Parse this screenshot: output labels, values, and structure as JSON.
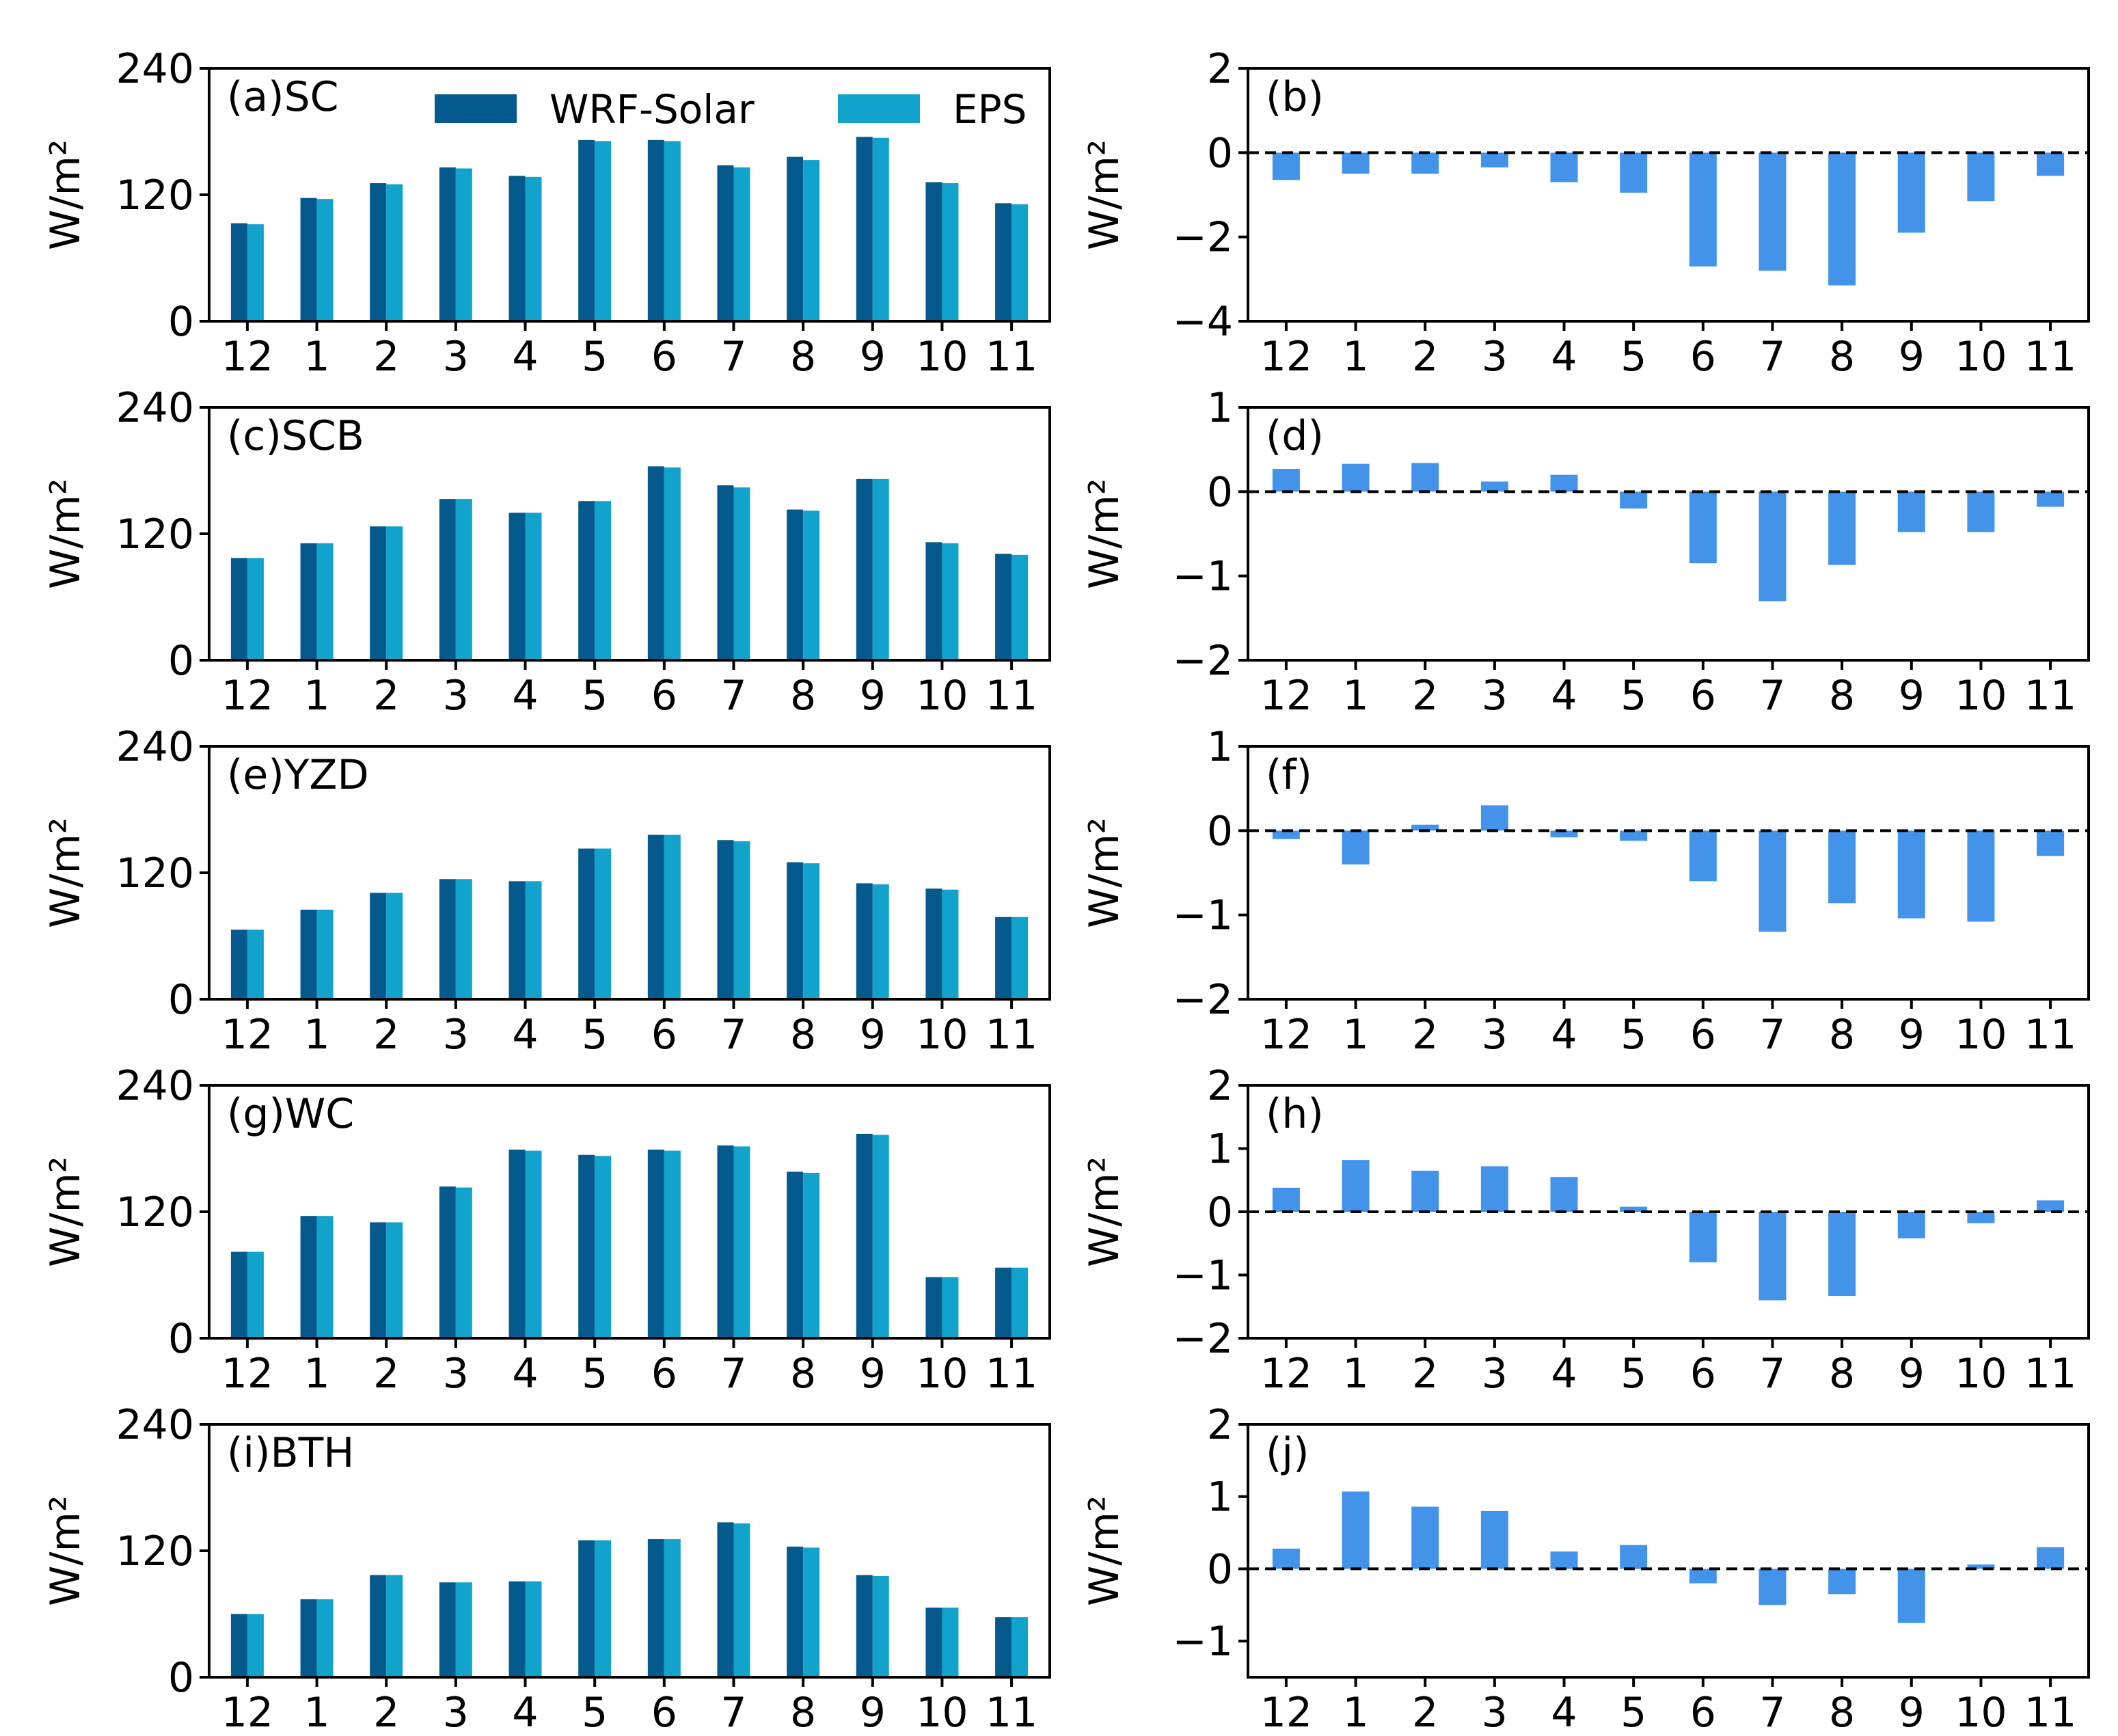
{
  "figure": {
    "colors": {
      "wrf": "#045a8d",
      "eps": "#11a3cc",
      "diff": "#4393ea",
      "zero_line": "#000000"
    },
    "legend": {
      "items": [
        "WRF-Solar",
        "EPS"
      ],
      "placement": "top-center of panel (a)"
    }
  },
  "chart_data": [
    {
      "type": "bar",
      "panel": "(a)SC",
      "categories": [
        "12",
        "1",
        "2",
        "3",
        "4",
        "5",
        "6",
        "7",
        "8",
        "9",
        "10",
        "11"
      ],
      "ylabel": "W/m²",
      "ylim": [
        0,
        240
      ],
      "yticks": [
        "0",
        "120",
        "240"
      ],
      "series": [
        {
          "name": "WRF-Solar",
          "values": [
            93,
            117,
            131,
            146,
            138,
            172,
            172,
            148,
            156,
            175,
            132,
            112
          ]
        },
        {
          "name": "EPS",
          "values": [
            92,
            116,
            130,
            145,
            137,
            171,
            171,
            146,
            153,
            174,
            131,
            111
          ]
        }
      ]
    },
    {
      "type": "bar",
      "panel": "(b)",
      "categories": [
        "12",
        "1",
        "2",
        "3",
        "4",
        "5",
        "6",
        "7",
        "8",
        "9",
        "10",
        "11"
      ],
      "ylabel": "W/m²",
      "ylim": [
        -4,
        2
      ],
      "yticks": [
        "−4",
        "−2",
        "0",
        "2"
      ],
      "series": [
        {
          "name": "",
          "values": [
            -0.65,
            -0.5,
            -0.5,
            -0.35,
            -0.7,
            -0.95,
            -2.7,
            -2.8,
            -3.15,
            -1.9,
            -1.15,
            -0.55
          ]
        }
      ]
    },
    {
      "type": "bar",
      "panel": "(c)SCB",
      "categories": [
        "12",
        "1",
        "2",
        "3",
        "4",
        "5",
        "6",
        "7",
        "8",
        "9",
        "10",
        "11"
      ],
      "ylabel": "W/m²",
      "ylim": [
        0,
        240
      ],
      "yticks": [
        "0",
        "120",
        "240"
      ],
      "series": [
        {
          "name": "WRF-Solar",
          "values": [
            97,
            111,
            127,
            153,
            140,
            151,
            184,
            166,
            143,
            172,
            112,
            101
          ]
        },
        {
          "name": "EPS",
          "values": [
            97,
            111,
            127,
            153,
            140,
            151,
            183,
            164,
            142,
            172,
            111,
            100
          ]
        }
      ]
    },
    {
      "type": "bar",
      "panel": "(d)",
      "categories": [
        "12",
        "1",
        "2",
        "3",
        "4",
        "5",
        "6",
        "7",
        "8",
        "9",
        "10",
        "11"
      ],
      "ylabel": "W/m²",
      "ylim": [
        -2,
        1
      ],
      "yticks": [
        "−2",
        "−1",
        "0",
        "1"
      ],
      "series": [
        {
          "name": "",
          "values": [
            0.27,
            0.33,
            0.34,
            0.12,
            0.2,
            -0.2,
            -0.85,
            -1.3,
            -0.87,
            -0.48,
            -0.48,
            -0.18
          ]
        }
      ]
    },
    {
      "type": "bar",
      "panel": "(e)YZD",
      "categories": [
        "12",
        "1",
        "2",
        "3",
        "4",
        "5",
        "6",
        "7",
        "8",
        "9",
        "10",
        "11"
      ],
      "ylabel": "W/m²",
      "ylim": [
        0,
        240
      ],
      "yticks": [
        "0",
        "120",
        "240"
      ],
      "series": [
        {
          "name": "WRF-Solar",
          "values": [
            66,
            85,
            101,
            114,
            112,
            143,
            156,
            151,
            130,
            110,
            105,
            78
          ]
        },
        {
          "name": "EPS",
          "values": [
            66,
            85,
            101,
            114,
            112,
            143,
            156,
            150,
            129,
            109,
            104,
            78
          ]
        }
      ]
    },
    {
      "type": "bar",
      "panel": "(f)",
      "categories": [
        "12",
        "1",
        "2",
        "3",
        "4",
        "5",
        "6",
        "7",
        "8",
        "9",
        "10",
        "11"
      ],
      "ylabel": "W/m²",
      "ylim": [
        -2,
        1
      ],
      "yticks": [
        "−2",
        "−1",
        "0",
        "1"
      ],
      "series": [
        {
          "name": "",
          "values": [
            -0.1,
            -0.4,
            0.07,
            0.3,
            -0.08,
            -0.12,
            -0.6,
            -1.2,
            -0.86,
            -1.04,
            -1.08,
            -0.3
          ]
        }
      ]
    },
    {
      "type": "bar",
      "panel": "(g)WC",
      "categories": [
        "12",
        "1",
        "2",
        "3",
        "4",
        "5",
        "6",
        "7",
        "8",
        "9",
        "10",
        "11"
      ],
      "ylabel": "W/m²",
      "ylim": [
        0,
        240
      ],
      "yticks": [
        "0",
        "120",
        "240"
      ],
      "series": [
        {
          "name": "WRF-Solar",
          "values": [
            82,
            116,
            110,
            144,
            179,
            174,
            179,
            183,
            158,
            194,
            58,
            67
          ]
        },
        {
          "name": "EPS",
          "values": [
            82,
            116,
            110,
            143,
            178,
            173,
            178,
            182,
            157,
            193,
            58,
            67
          ]
        }
      ]
    },
    {
      "type": "bar",
      "panel": "(h)",
      "categories": [
        "12",
        "1",
        "2",
        "3",
        "4",
        "5",
        "6",
        "7",
        "8",
        "9",
        "10",
        "11"
      ],
      "ylabel": "W/m²",
      "ylim": [
        -2,
        2
      ],
      "yticks": [
        "−2",
        "−1",
        "0",
        "1",
        "2"
      ],
      "series": [
        {
          "name": "",
          "values": [
            0.38,
            0.82,
            0.65,
            0.72,
            0.55,
            0.08,
            -0.8,
            -1.4,
            -1.33,
            -0.42,
            -0.18,
            0.18
          ]
        }
      ]
    },
    {
      "type": "bar",
      "panel": "(i)BTH",
      "categories": [
        "12",
        "1",
        "2",
        "3",
        "4",
        "5",
        "6",
        "7",
        "8",
        "9",
        "10",
        "11"
      ],
      "ylabel": "W/m²",
      "ylim": [
        0,
        240
      ],
      "yticks": [
        "0",
        "120",
        "240"
      ],
      "series": [
        {
          "name": "WRF-Solar",
          "values": [
            60,
            74,
            97,
            90,
            91,
            130,
            131,
            147,
            124,
            97,
            66,
            57
          ]
        },
        {
          "name": "EPS",
          "values": [
            60,
            74,
            97,
            90,
            91,
            130,
            131,
            146,
            123,
            96,
            66,
            57
          ]
        }
      ]
    },
    {
      "type": "bar",
      "panel": "(j)",
      "categories": [
        "12",
        "1",
        "2",
        "3",
        "4",
        "5",
        "6",
        "7",
        "8",
        "9",
        "10",
        "11"
      ],
      "ylabel": "W/m²",
      "ylim": [
        -1.5,
        2
      ],
      "yticks": [
        "−1",
        "0",
        "1",
        "2"
      ],
      "series": [
        {
          "name": "",
          "values": [
            0.28,
            1.07,
            0.86,
            0.8,
            0.24,
            0.33,
            -0.2,
            -0.5,
            -0.35,
            -0.75,
            0.06,
            0.3
          ]
        }
      ]
    }
  ]
}
